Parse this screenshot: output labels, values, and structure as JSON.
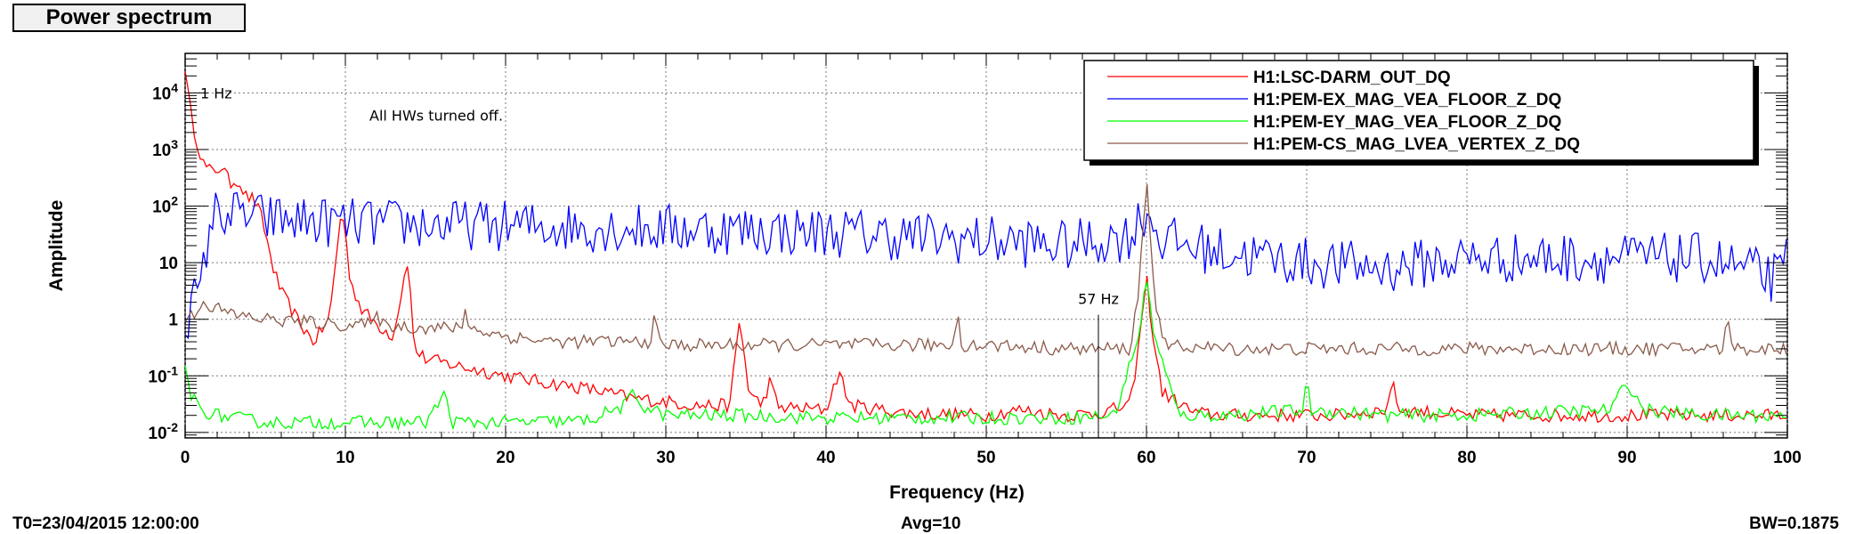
{
  "title": "Power spectrum",
  "footer": {
    "t0": "T0=23/04/2015 12:00:00",
    "avg": "Avg=10",
    "bw": "BW=0.1875"
  },
  "chart_data": {
    "type": "line",
    "xlabel": "Frequency (Hz)",
    "ylabel": "Amplitude",
    "xlim": [
      0,
      100
    ],
    "ylim": [
      0.008,
      50000
    ],
    "yscale": "log",
    "grid": true,
    "legend_position": "top-right",
    "x_ticks": [
      0,
      10,
      20,
      30,
      40,
      50,
      60,
      70,
      80,
      90,
      100
    ],
    "y_ticks": [
      {
        "value": 10000,
        "label": "10",
        "exp": "4"
      },
      {
        "value": 1000,
        "label": "10",
        "exp": "3"
      },
      {
        "value": 100,
        "label": "10",
        "exp": "2"
      },
      {
        "value": 10,
        "label": "10",
        "exp": ""
      },
      {
        "value": 1,
        "label": "1",
        "exp": ""
      },
      {
        "value": 0.1,
        "label": "10",
        "exp": "-1"
      },
      {
        "value": 0.01,
        "label": "10",
        "exp": "-2"
      }
    ],
    "annotations": [
      {
        "text": "1 Hz",
        "x": 1,
        "y": 10000
      },
      {
        "text": "All HWs turned off.",
        "x": 11.5,
        "y": 4000
      },
      {
        "text": "57 Hz",
        "x": 57,
        "y": 1.5
      }
    ],
    "markers": [
      57
    ],
    "series": [
      {
        "name": "H1:LSC-DARM_OUT_DQ",
        "color": "#ff0000",
        "x": [
          0,
          0.3,
          0.7,
          1.2,
          1.7,
          2.3,
          2.8,
          3.3,
          3.8,
          4.3,
          4.8,
          5.5,
          6,
          7,
          8,
          9,
          9.5,
          9.8,
          10.3,
          11,
          12,
          13,
          13.5,
          13.9,
          14.3,
          15,
          17,
          20,
          22,
          25,
          28,
          30,
          32,
          34,
          34.6,
          35.2,
          36,
          36.5,
          37,
          40,
          40.8,
          41.5,
          45,
          50,
          52,
          55,
          57,
          59,
          59.6,
          60,
          60.4,
          61,
          63,
          65,
          70,
          72,
          75,
          75.3,
          75.8,
          80,
          85,
          90,
          95,
          100
        ],
        "y": [
          30000,
          5000,
          1500,
          500,
          400,
          500,
          250,
          300,
          150,
          130,
          60,
          8,
          3,
          1,
          0.4,
          1,
          20,
          100,
          5,
          1.5,
          0.8,
          0.5,
          3,
          12,
          0.3,
          0.2,
          0.15,
          0.1,
          0.08,
          0.06,
          0.04,
          0.035,
          0.03,
          0.03,
          1,
          0.05,
          0.03,
          0.08,
          0.028,
          0.025,
          0.12,
          0.03,
          0.022,
          0.02,
          0.025,
          0.02,
          0.022,
          0.03,
          0.5,
          6,
          0.5,
          0.05,
          0.022,
          0.02,
          0.02,
          0.02,
          0.025,
          0.08,
          0.025,
          0.02,
          0.02,
          0.02,
          0.02,
          0.02
        ]
      },
      {
        "name": "H1:PEM-EX_MAG_VEA_FLOOR_Z_DQ",
        "color": "#0000ff",
        "x": [
          0,
          0.5,
          1,
          1.5,
          2,
          5,
          10,
          20,
          30,
          40,
          50,
          55,
          59,
          59.6,
          60,
          60.4,
          61,
          65,
          70,
          75,
          80,
          85,
          90,
          95,
          99.5,
          100
        ],
        "y": [
          1,
          2,
          3,
          50,
          80,
          60,
          50,
          45,
          40,
          35,
          25,
          20,
          30,
          60,
          80,
          50,
          25,
          15,
          10,
          8,
          12,
          12,
          12,
          12,
          5,
          12
        ]
      },
      {
        "name": "H1:PEM-EY_MAG_VEA_FLOOR_Z_DQ",
        "color": "#00ff00",
        "x": [
          0,
          0.3,
          1,
          2,
          5,
          10,
          15,
          16.3,
          16.6,
          17,
          20,
          25,
          27.5,
          28,
          28.5,
          30,
          35,
          40,
          50,
          55,
          58,
          59.5,
          60,
          60.5,
          62,
          65,
          69.8,
          70,
          70.3,
          75,
          80,
          89,
          90,
          91,
          95,
          100
        ],
        "y": [
          0.15,
          0.05,
          0.025,
          0.02,
          0.015,
          0.015,
          0.015,
          0.05,
          0.015,
          0.015,
          0.015,
          0.016,
          0.03,
          0.05,
          0.03,
          0.02,
          0.02,
          0.018,
          0.018,
          0.018,
          0.02,
          0.5,
          5,
          0.5,
          0.02,
          0.02,
          0.025,
          0.08,
          0.025,
          0.02,
          0.02,
          0.025,
          0.08,
          0.025,
          0.02,
          0.02
        ]
      },
      {
        "name": "H1:PEM-CS_MAG_LVEA_VERTEX_Z_DQ",
        "color": "#8b5a4a",
        "x": [
          0,
          0.5,
          1,
          3,
          5,
          10,
          11.8,
          12,
          12.2,
          15,
          17.3,
          17.5,
          17.7,
          20,
          23,
          29,
          29.3,
          29.6,
          30,
          35,
          40,
          48,
          48.2,
          48.4,
          50,
          55,
          57,
          59,
          59.5,
          60,
          60.5,
          61,
          65,
          70,
          80,
          90,
          96,
          96.3,
          96.6,
          100
        ],
        "y": [
          1,
          1.2,
          2,
          1.2,
          1,
          0.8,
          0.8,
          2,
          0.8,
          0.7,
          0.7,
          2,
          0.7,
          0.5,
          0.4,
          0.4,
          1,
          0.4,
          0.35,
          0.35,
          0.35,
          0.35,
          2,
          0.35,
          0.35,
          0.3,
          0.3,
          0.3,
          3,
          300,
          3,
          0.35,
          0.3,
          0.3,
          0.3,
          0.3,
          0.3,
          1.2,
          0.3,
          0.3
        ]
      }
    ]
  }
}
